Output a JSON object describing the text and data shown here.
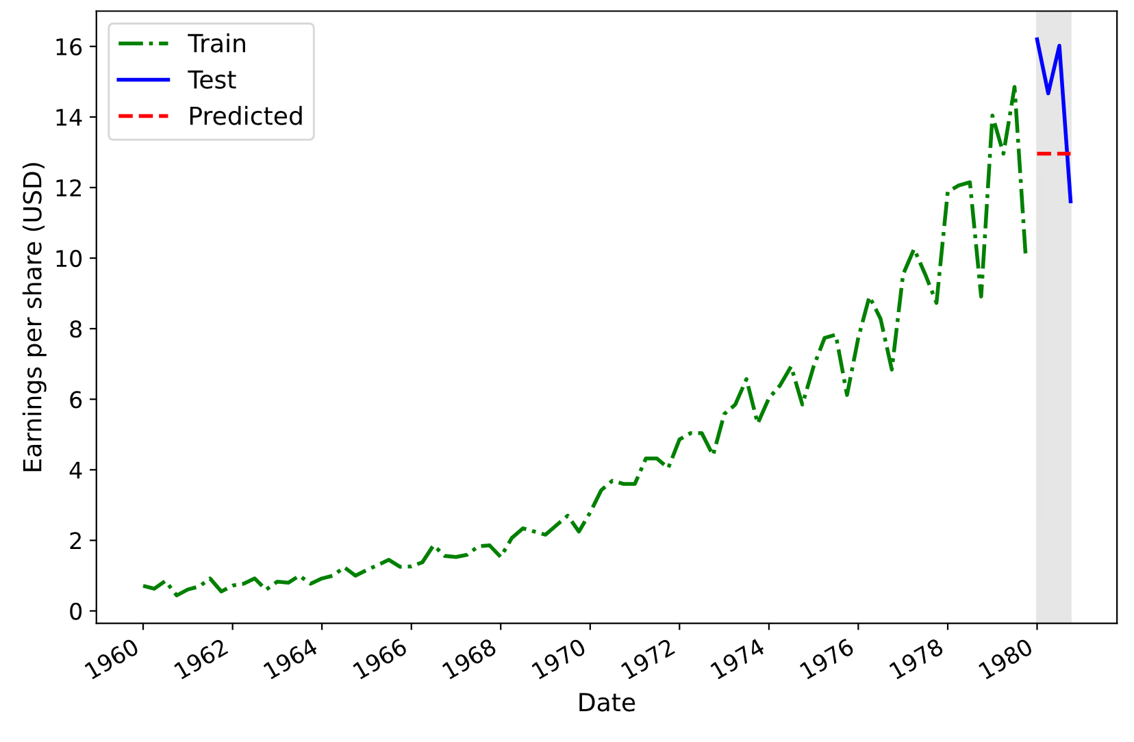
{
  "chart_data": {
    "type": "line",
    "xlabel": "Date",
    "ylabel": "Earnings per share (USD)",
    "xlim": [
      "1958-12-15",
      "1981-10-15"
    ],
    "ylim": [
      -0.35,
      17
    ],
    "xticks": [
      {
        "value": "1960-01-01",
        "label": "1960"
      },
      {
        "value": "1962-01-01",
        "label": "1962"
      },
      {
        "value": "1964-01-01",
        "label": "1964"
      },
      {
        "value": "1966-01-01",
        "label": "1966"
      },
      {
        "value": "1968-01-01",
        "label": "1968"
      },
      {
        "value": "1970-01-01",
        "label": "1970"
      },
      {
        "value": "1972-01-01",
        "label": "1972"
      },
      {
        "value": "1974-01-01",
        "label": "1974"
      },
      {
        "value": "1976-01-01",
        "label": "1976"
      },
      {
        "value": "1978-01-01",
        "label": "1978"
      },
      {
        "value": "1980-01-01",
        "label": "1980"
      }
    ],
    "yticks": [
      0,
      2,
      4,
      6,
      8,
      10,
      12,
      14,
      16
    ],
    "grid": false,
    "legend": "top left",
    "bands": [
      {
        "axis": "x",
        "from": "1980-01-01",
        "to": "1980-10-01",
        "color": "#808080"
      }
    ],
    "series": [
      {
        "name": "Train",
        "color": "#008000",
        "line_style": "dashdot",
        "x": [
          "1960-01-01",
          "1960-04-01",
          "1960-07-01",
          "1960-10-01",
          "1961-01-01",
          "1961-04-01",
          "1961-07-01",
          "1961-10-01",
          "1962-01-01",
          "1962-04-01",
          "1962-07-01",
          "1962-10-01",
          "1963-01-01",
          "1963-04-01",
          "1963-07-01",
          "1963-10-01",
          "1964-01-01",
          "1964-04-01",
          "1964-07-01",
          "1964-10-01",
          "1965-01-01",
          "1965-04-01",
          "1965-07-01",
          "1965-10-01",
          "1966-01-01",
          "1966-04-01",
          "1966-07-01",
          "1966-10-01",
          "1967-01-01",
          "1967-04-01",
          "1967-07-01",
          "1967-10-01",
          "1968-01-01",
          "1968-04-01",
          "1968-07-01",
          "1968-10-01",
          "1969-01-01",
          "1969-04-01",
          "1969-07-01",
          "1969-10-01",
          "1970-01-01",
          "1970-04-01",
          "1970-07-01",
          "1970-10-01",
          "1971-01-01",
          "1971-04-01",
          "1971-07-01",
          "1971-10-01",
          "1972-01-01",
          "1972-04-01",
          "1972-07-01",
          "1972-10-01",
          "1973-01-01",
          "1973-04-01",
          "1973-07-01",
          "1973-10-01",
          "1974-01-01",
          "1974-04-01",
          "1974-07-01",
          "1974-10-01",
          "1975-01-01",
          "1975-04-01",
          "1975-07-01",
          "1975-10-01",
          "1976-01-01",
          "1976-04-01",
          "1976-07-01",
          "1976-10-01",
          "1977-01-01",
          "1977-04-01",
          "1977-07-01",
          "1977-10-01",
          "1978-01-01",
          "1978-04-01",
          "1978-07-01",
          "1978-10-01",
          "1979-01-01",
          "1979-04-01",
          "1979-07-01",
          "1979-10-01"
        ],
        "values": [
          0.71,
          0.63,
          0.85,
          0.44,
          0.61,
          0.69,
          0.92,
          0.55,
          0.72,
          0.77,
          0.92,
          0.6,
          0.83,
          0.8,
          1.0,
          0.77,
          0.92,
          1.0,
          1.24,
          1.0,
          1.16,
          1.3,
          1.45,
          1.25,
          1.26,
          1.38,
          1.86,
          1.56,
          1.53,
          1.59,
          1.83,
          1.86,
          1.53,
          2.07,
          2.34,
          2.25,
          2.16,
          2.43,
          2.7,
          2.25,
          2.79,
          3.42,
          3.69,
          3.6,
          3.6,
          4.32,
          4.32,
          4.05,
          4.86,
          5.04,
          5.04,
          4.41,
          5.58,
          5.85,
          6.57,
          5.31,
          6.03,
          6.39,
          6.93,
          5.85,
          6.93,
          7.74,
          7.83,
          6.12,
          7.74,
          8.91,
          8.28,
          6.84,
          9.54,
          10.26,
          9.54,
          8.73,
          11.88,
          12.06,
          12.15,
          8.91,
          14.04,
          12.96,
          14.85,
          9.99
        ]
      },
      {
        "name": "Test",
        "color": "#0000ff",
        "line_style": "solid",
        "x": [
          "1980-01-01",
          "1980-04-01",
          "1980-07-01",
          "1980-10-01"
        ],
        "values": [
          16.2,
          14.67,
          16.02,
          11.61
        ]
      },
      {
        "name": "Predicted",
        "color": "#ff0000",
        "line_style": "dashed",
        "x": [
          "1980-01-01",
          "1980-04-01",
          "1980-07-01",
          "1980-10-01"
        ],
        "values": [
          12.96,
          12.96,
          12.96,
          12.96
        ]
      }
    ]
  }
}
